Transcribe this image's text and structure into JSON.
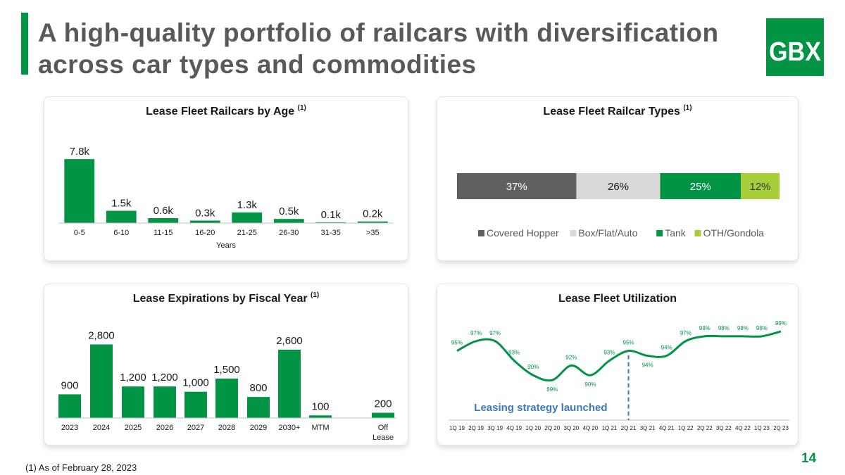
{
  "page": {
    "title": "A high-quality portfolio of railcars with diversification across car types and commodities",
    "logo_text": "GBX",
    "footnote": "(1) As of February 28, 2023",
    "page_number": "14",
    "colors": {
      "green": "#009444",
      "dark_gray": "#5f6062",
      "light_gray": "#d9d9d9",
      "lime": "#a6ce39",
      "title_gray": "#58595b"
    }
  },
  "chart_data": [
    {
      "id": "age",
      "type": "bar",
      "title": "Lease Fleet Railcars by Age",
      "title_note": "(1)",
      "xlabel": "Years",
      "ylabel": "",
      "categories": [
        "0-5",
        "6-10",
        "11-15",
        "16-20",
        "21-25",
        "26-30",
        "31-35",
        ">35"
      ],
      "values": [
        7.8,
        1.5,
        0.6,
        0.3,
        1.3,
        0.5,
        0.1,
        0.2
      ],
      "value_labels": [
        "7.8k",
        "1.5k",
        "0.6k",
        "0.3k",
        "1.3k",
        "0.5k",
        "0.1k",
        "0.2k"
      ],
      "unit": "thousand railcars",
      "ylim": [
        0,
        8.5
      ],
      "grid": false
    },
    {
      "id": "types",
      "type": "bar",
      "orientation": "horizontal-stacked-100",
      "title": "Lease Fleet Railcar Types",
      "title_note": "(1)",
      "series": [
        {
          "name": "Covered Hopper",
          "values": [
            37
          ],
          "label": "37%",
          "color": "#5f6062"
        },
        {
          "name": "Box/Flat/Auto",
          "values": [
            26
          ],
          "label": "26%",
          "color": "#d9d9d9"
        },
        {
          "name": "Tank",
          "values": [
            25
          ],
          "label": "25%",
          "color": "#009444"
        },
        {
          "name": "OTH/Gondola",
          "values": [
            12
          ],
          "label": "12%",
          "color": "#a6ce39"
        }
      ],
      "legend": "bottom"
    },
    {
      "id": "expirations",
      "type": "bar",
      "title": "Lease Expirations by Fiscal Year",
      "title_note": "(1)",
      "categories": [
        "2023",
        "2024",
        "2025",
        "2026",
        "2027",
        "2028",
        "2029",
        "2030+",
        "MTM",
        "Off Lease"
      ],
      "values": [
        900,
        2800,
        1200,
        1200,
        1000,
        1500,
        800,
        2600,
        100,
        200
      ],
      "value_labels": [
        "900",
        "2,800",
        "1,200",
        "1,200",
        "1,000",
        "1,500",
        "800",
        "2,600",
        "100",
        "200"
      ],
      "ylim": [
        0,
        3000
      ],
      "grid": false
    },
    {
      "id": "utilization",
      "type": "line",
      "title": "Lease Fleet Utilization",
      "x": [
        "1Q 19",
        "2Q 19",
        "3Q 19",
        "4Q 19",
        "1Q 20",
        "2Q 20",
        "3Q 20",
        "4Q 20",
        "1Q 21",
        "2Q 21",
        "3Q 21",
        "4Q 21",
        "1Q 22",
        "2Q 22",
        "3Q 22",
        "4Q 22",
        "1Q 23",
        "2Q 23"
      ],
      "values": [
        95,
        97,
        97,
        93,
        90,
        89,
        92,
        90,
        93,
        95,
        94,
        94,
        97,
        98,
        98,
        98,
        98,
        99
      ],
      "value_labels": [
        "95%",
        "97%",
        "97%",
        "93%",
        "90%",
        "89%",
        "92%",
        "90%",
        "93%",
        "95%",
        "94%",
        "94%",
        "97%",
        "98%",
        "98%",
        "98%",
        "98%",
        "99%"
      ],
      "ylim": [
        87,
        100
      ],
      "annotation": {
        "text": "Leasing strategy launched",
        "at": "2Q 21"
      },
      "grid": false
    }
  ]
}
